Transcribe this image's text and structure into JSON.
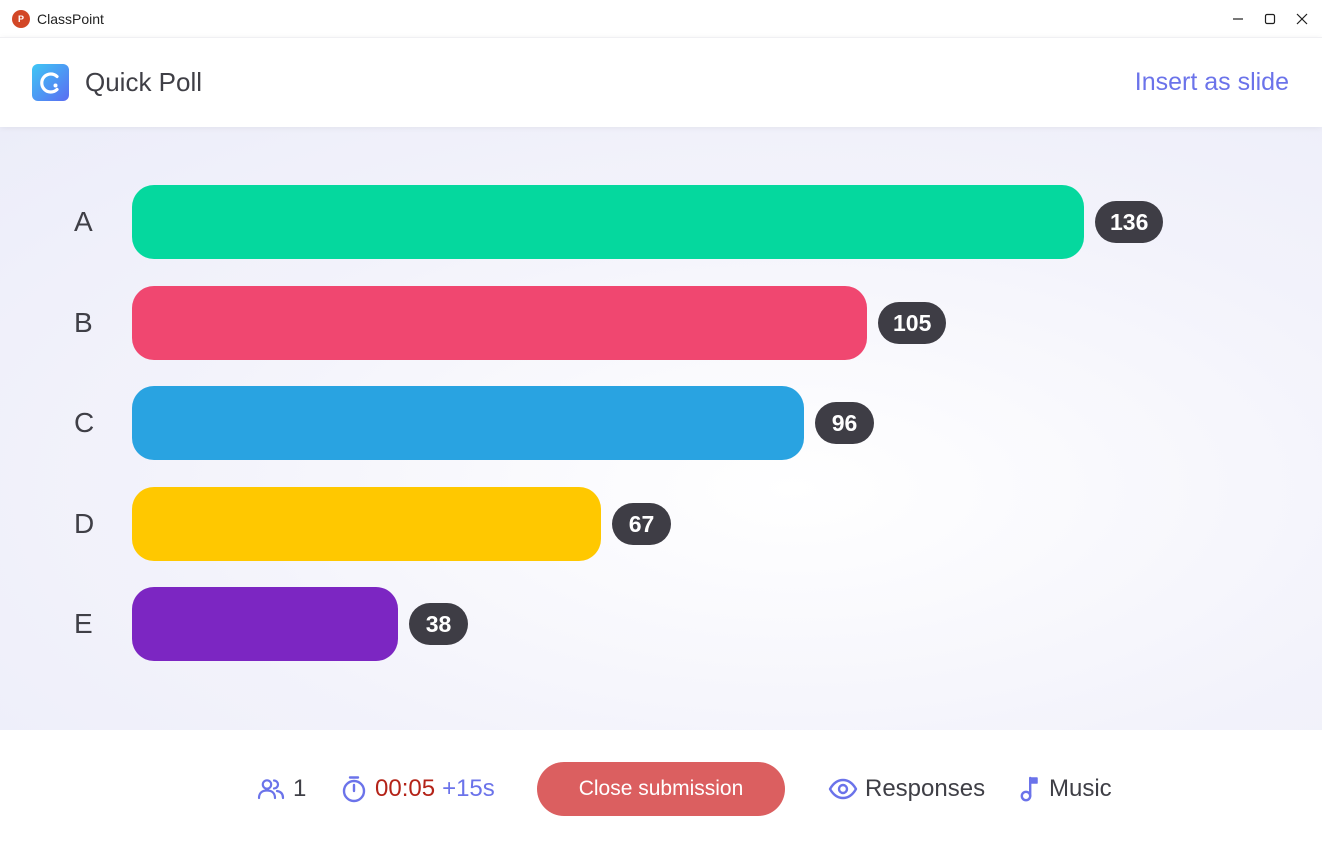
{
  "window": {
    "app_icon_letter": "P",
    "title": "ClassPoint"
  },
  "header": {
    "title": "Quick Poll",
    "insert_label": "Insert as slide"
  },
  "chart_data": {
    "type": "bar",
    "orientation": "horizontal",
    "categories": [
      "A",
      "B",
      "C",
      "D",
      "E"
    ],
    "values": [
      136,
      105,
      96,
      67,
      38
    ],
    "colors": [
      "#05d89e",
      "#f04770",
      "#29a3e1",
      "#ffc800",
      "#7c26c2"
    ],
    "max": 136
  },
  "footer": {
    "participant_count": "1",
    "timer": "00:05",
    "extend_label": "+15s",
    "close_label": "Close submission",
    "responses_label": "Responses",
    "music_label": "Music"
  },
  "colors": {
    "accent": "#6b73ea",
    "close_button": "#db5f60",
    "timer_text": "#b42318",
    "badge": "#3e3d45"
  }
}
